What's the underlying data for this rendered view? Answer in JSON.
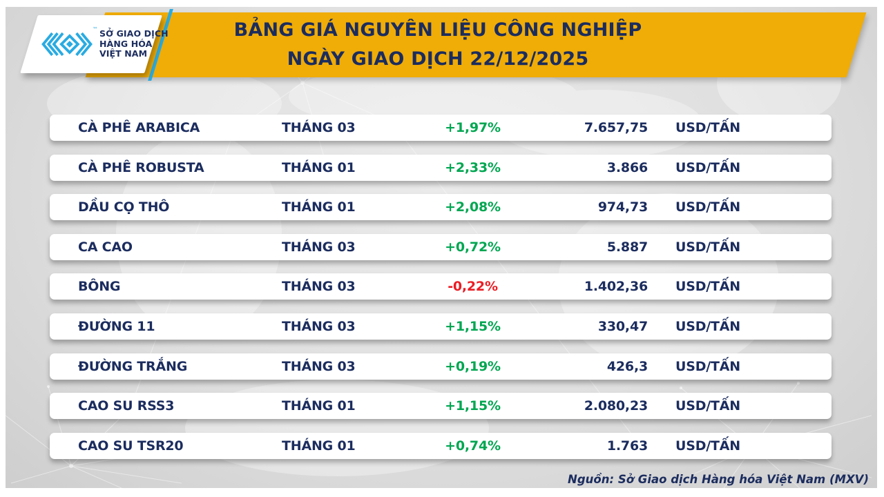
{
  "colors": {
    "yellow": "#F0AC07",
    "navy": "#1B2C5E",
    "green": "#00A651",
    "red": "#EC1C24",
    "cyan": "#29ABE2"
  },
  "header": {
    "title_line1": "BẢNG GIÁ NGUYÊN LIỆU CÔNG NGHIỆP",
    "title_line2": "NGÀY GIAO DỊCH 22/12/2025",
    "logo": {
      "tm_symbol": "™",
      "line1": "SỞ GIAO DỊCH",
      "line2": "HÀNG HÓA",
      "line3": "VIỆT NAM"
    }
  },
  "table": {
    "unit": "USD/TẤN",
    "rows": [
      {
        "name": "CÀ PHÊ ARABICA",
        "month": "THÁNG 03",
        "change": "+1,97%",
        "direction": "up",
        "price": "7.657,75"
      },
      {
        "name": "CÀ PHÊ ROBUSTA",
        "month": "THÁNG 01",
        "change": "+2,33%",
        "direction": "up",
        "price": "3.866"
      },
      {
        "name": "DẦU CỌ THÔ",
        "month": "THÁNG 01",
        "change": "+2,08%",
        "direction": "up",
        "price": "974,73"
      },
      {
        "name": "CA CAO",
        "month": "THÁNG 03",
        "change": "+0,72%",
        "direction": "up",
        "price": "5.887"
      },
      {
        "name": "BÔNG",
        "month": "THÁNG 03",
        "change": "-0,22%",
        "direction": "down",
        "price": "1.402,36"
      },
      {
        "name": "ĐƯỜNG 11",
        "month": "THÁNG 03",
        "change": "+1,15%",
        "direction": "up",
        "price": "330,47"
      },
      {
        "name": "ĐƯỜNG TRẮNG",
        "month": "THÁNG 03",
        "change": "+0,19%",
        "direction": "up",
        "price": "426,3"
      },
      {
        "name": "CAO SU RSS3",
        "month": "THÁNG 01",
        "change": "+1,15%",
        "direction": "up",
        "price": "2.080,23"
      },
      {
        "name": "CAO SU TSR20",
        "month": "THÁNG 01",
        "change": "+0,74%",
        "direction": "up",
        "price": "1.763"
      }
    ]
  },
  "chart_data": {
    "type": "table",
    "title": "BẢNG GIÁ NGUYÊN LIỆU CÔNG NGHIỆP NGÀY GIAO DỊCH 22/12/2025",
    "categories": [
      "CÀ PHÊ ARABICA",
      "CÀ PHÊ ROBUSTA",
      "DẦU CỌ THÔ",
      "CA CAO",
      "BÔNG",
      "ĐƯỜNG 11",
      "ĐƯỜNG TRẮNG",
      "CAO SU RSS3",
      "CAO SU TSR20"
    ],
    "contract_months": [
      "THÁNG 03",
      "THÁNG 01",
      "THÁNG 01",
      "THÁNG 03",
      "THÁNG 03",
      "THÁNG 03",
      "THÁNG 03",
      "THÁNG 01",
      "THÁNG 01"
    ],
    "change_percent": [
      1.97,
      2.33,
      2.08,
      0.72,
      -0.22,
      1.15,
      0.19,
      1.15,
      0.74
    ],
    "price_usd_per_ton": [
      7657.75,
      3866,
      974.73,
      5887,
      1402.36,
      330.47,
      426.3,
      2080.23,
      1763
    ],
    "unit": "USD/TẤN"
  },
  "footer": {
    "source": "Nguồn: Sở Giao dịch Hàng hóa Việt Nam (MXV)"
  }
}
